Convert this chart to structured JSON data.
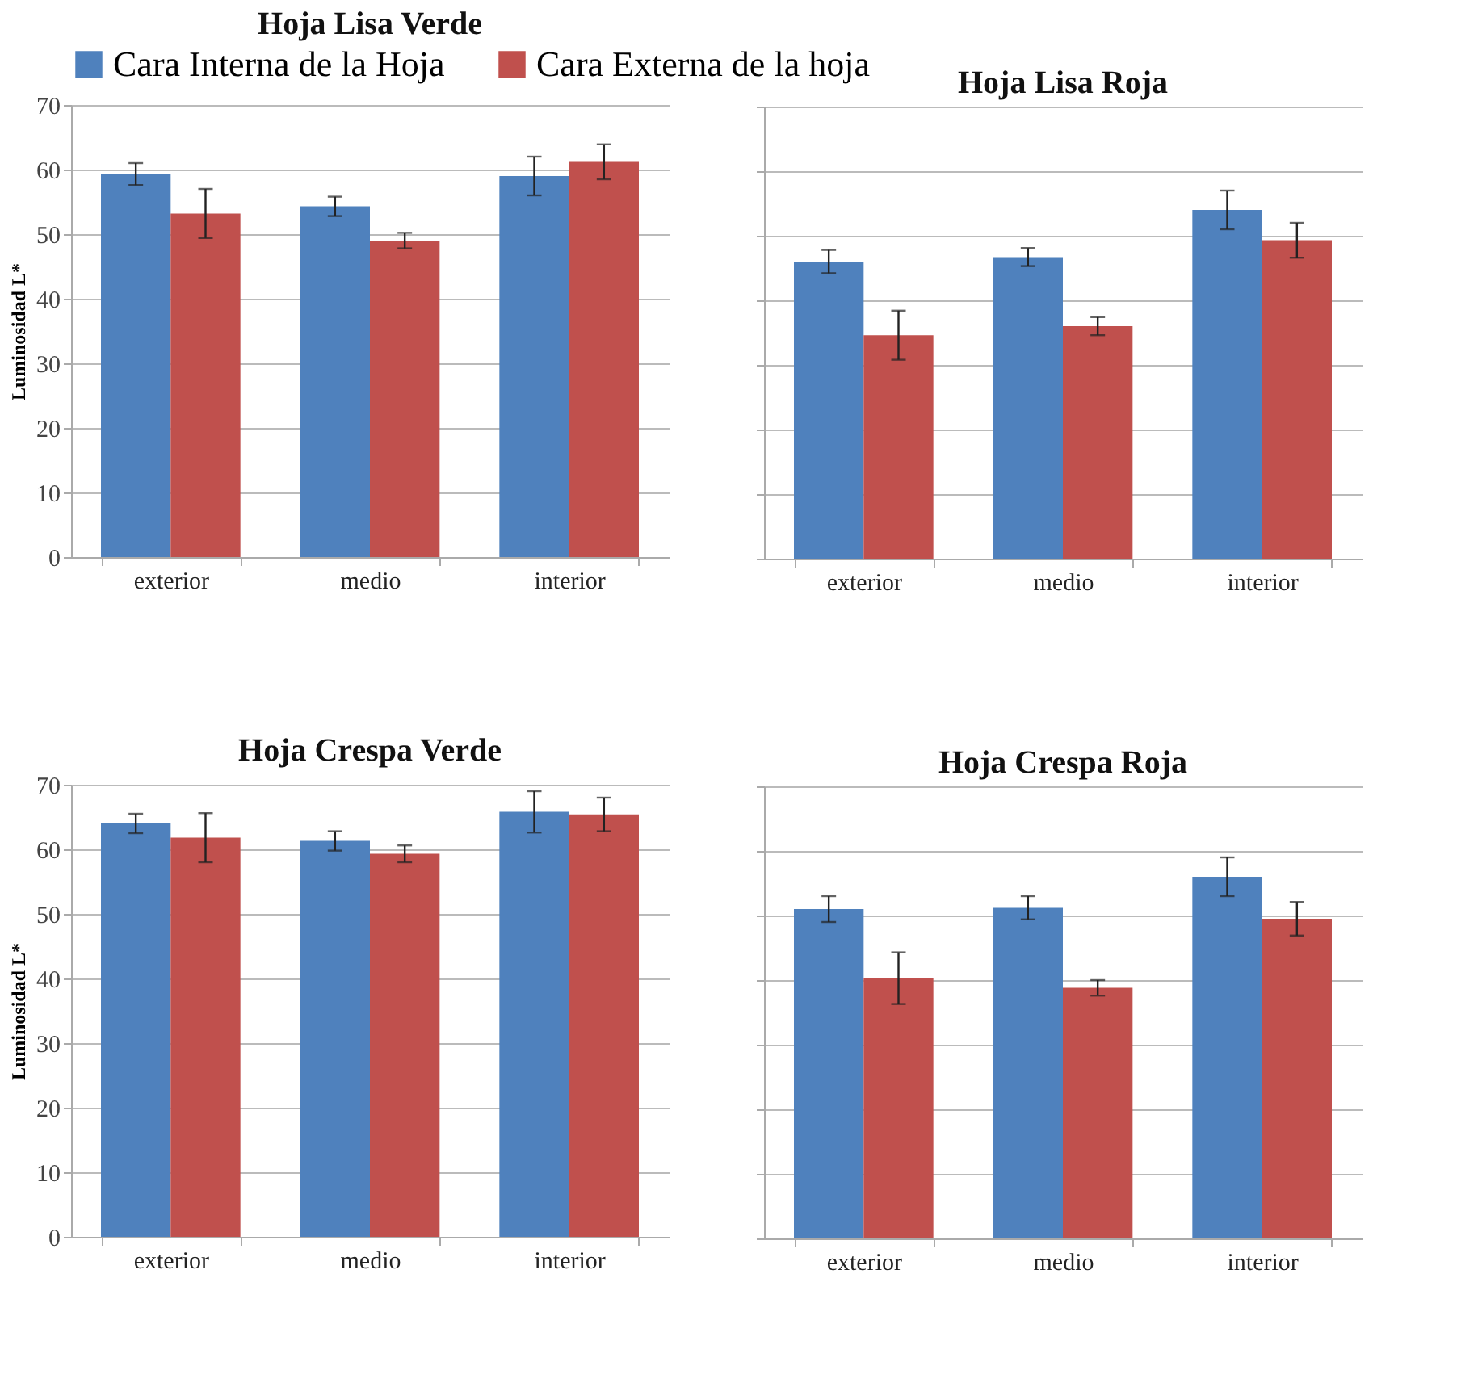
{
  "chart_data": [
    {
      "type": "bar",
      "title": "Hoja Lisa Verde",
      "ylabel": "Luminosidad L*",
      "categories": [
        "exterior",
        "medio",
        "interior"
      ],
      "ylim": [
        0,
        70
      ],
      "yticks": [
        0,
        10,
        20,
        30,
        40,
        50,
        60,
        70
      ],
      "grid": "y",
      "legend": "top",
      "series": [
        {
          "name": "Cara Interna de la Hoja",
          "color": "#4f81bd",
          "values": [
            59.3,
            54.3,
            59.0
          ],
          "errors": [
            1.7,
            1.5,
            3.0
          ]
        },
        {
          "name": "Cara Externa de la hoja",
          "color": "#c0504d",
          "values": [
            53.2,
            49.0,
            61.2
          ],
          "errors": [
            3.8,
            1.2,
            2.7
          ]
        }
      ]
    },
    {
      "type": "bar",
      "title": "Hoja Lisa Roja",
      "categories": [
        "exterior",
        "medio",
        "interior"
      ],
      "ylim": [
        0,
        70
      ],
      "yticks": [
        0,
        10,
        20,
        30,
        40,
        50,
        60,
        70
      ],
      "grid": "y",
      "tick_labels": "x",
      "series": [
        {
          "color": "#4f81bd",
          "values": [
            46.0,
            46.7,
            54.0
          ],
          "errors": [
            1.8,
            1.4,
            3.0
          ]
        },
        {
          "color": "#c0504d",
          "values": [
            34.6,
            36.0,
            49.3
          ],
          "errors": [
            3.8,
            1.4,
            2.7
          ]
        }
      ]
    },
    {
      "type": "bar",
      "title": "Hoja Crespa Verde",
      "ylabel": "Luminosidad L*",
      "categories": [
        "exterior",
        "medio",
        "interior"
      ],
      "ylim": [
        0,
        70
      ],
      "yticks": [
        0,
        10,
        20,
        30,
        40,
        50,
        60,
        70
      ],
      "grid": "y",
      "series": [
        {
          "color": "#4f81bd",
          "values": [
            64.0,
            61.3,
            65.8
          ],
          "errors": [
            1.5,
            1.5,
            3.2
          ]
        },
        {
          "color": "#c0504d",
          "values": [
            61.8,
            59.3,
            65.4
          ],
          "errors": [
            3.8,
            1.3,
            2.6
          ]
        }
      ]
    },
    {
      "type": "bar",
      "title": "Hoja Crespa Roja",
      "categories": [
        "exterior",
        "medio",
        "interior"
      ],
      "ylim": [
        0,
        70
      ],
      "yticks": [
        0,
        10,
        20,
        30,
        40,
        50,
        60,
        70
      ],
      "grid": "y",
      "tick_labels": "x",
      "series": [
        {
          "color": "#4f81bd",
          "values": [
            51.0,
            51.2,
            56.0
          ],
          "errors": [
            2.0,
            1.8,
            3.0
          ]
        },
        {
          "color": "#c0504d",
          "values": [
            40.3,
            38.8,
            49.5
          ],
          "errors": [
            4.0,
            1.2,
            2.6
          ]
        }
      ]
    }
  ]
}
